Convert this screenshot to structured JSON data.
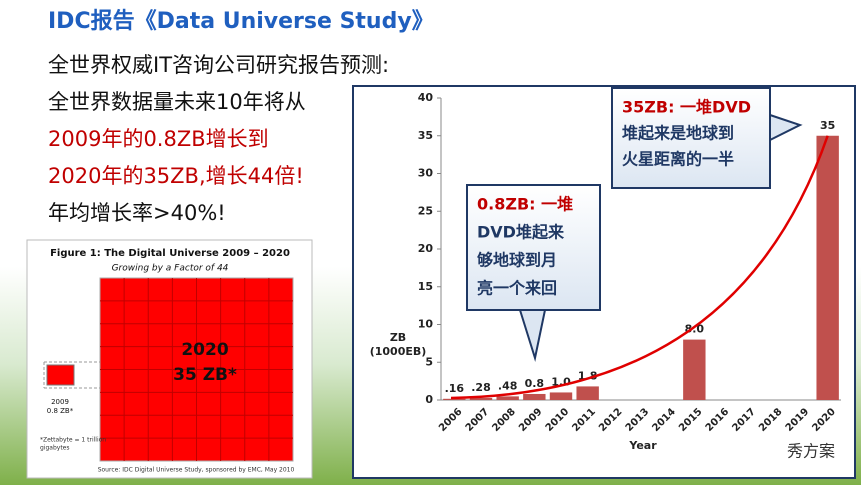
{
  "slide": {
    "title": "IDC报告《Data Universe Study》",
    "lines": [
      "全世界权威IT咨询公司研究报告预测:",
      "全世界数据量未来10年将从"
    ],
    "highlight_lines": [
      "2009年的0.8ZB增长到",
      "2020年的35ZB,增长44倍!"
    ],
    "last_line": "年均增长率>40%!",
    "watermark": "秀方案"
  },
  "figure": {
    "title": "Figure 1:  The Digital Universe 2009 – 2020",
    "subtitle": "Growing by a Factor of 44",
    "big_year": "2020",
    "big_value": "35 ZB*",
    "small_year": "2009",
    "small_value": "0.8 ZB*",
    "footnote": [
      "*Zettabyte = 1 trillion",
      "gigabytes"
    ],
    "source": "Source: IDC Digital Universe Study, sponsored by EMC, May 2010"
  },
  "chart_data": {
    "type": "bar",
    "categories": [
      "2006",
      "2007",
      "2008",
      "2009",
      "2010",
      "2011",
      "2012",
      "2013",
      "2014",
      "2015",
      "2016",
      "2017",
      "2018",
      "2019",
      "2020"
    ],
    "values": [
      0.16,
      0.28,
      0.48,
      0.8,
      1.0,
      1.8,
      null,
      null,
      null,
      8.0,
      null,
      null,
      null,
      null,
      35
    ],
    "value_labels": [
      ".16",
      ".28",
      ".48",
      "0.8",
      "1.0",
      "1.8",
      null,
      null,
      null,
      "8.0",
      null,
      null,
      null,
      null,
      "35"
    ],
    "color": "#c0504d",
    "ylim": [
      0,
      40
    ],
    "yticks": [
      0,
      5,
      10,
      15,
      20,
      25,
      30,
      35,
      40
    ],
    "ylabel": [
      "ZB",
      "(1000EB)"
    ],
    "xlabel": "Year",
    "annotations": [
      {
        "lines": [
          "35ZB: 一堆DVD",
          "堆起来是地球到",
          "火星距离的一半"
        ]
      },
      {
        "lines": [
          "0.8ZB: 一堆",
          "DVD堆起来",
          "够地球到月",
          "亮一个来回"
        ]
      }
    ]
  }
}
